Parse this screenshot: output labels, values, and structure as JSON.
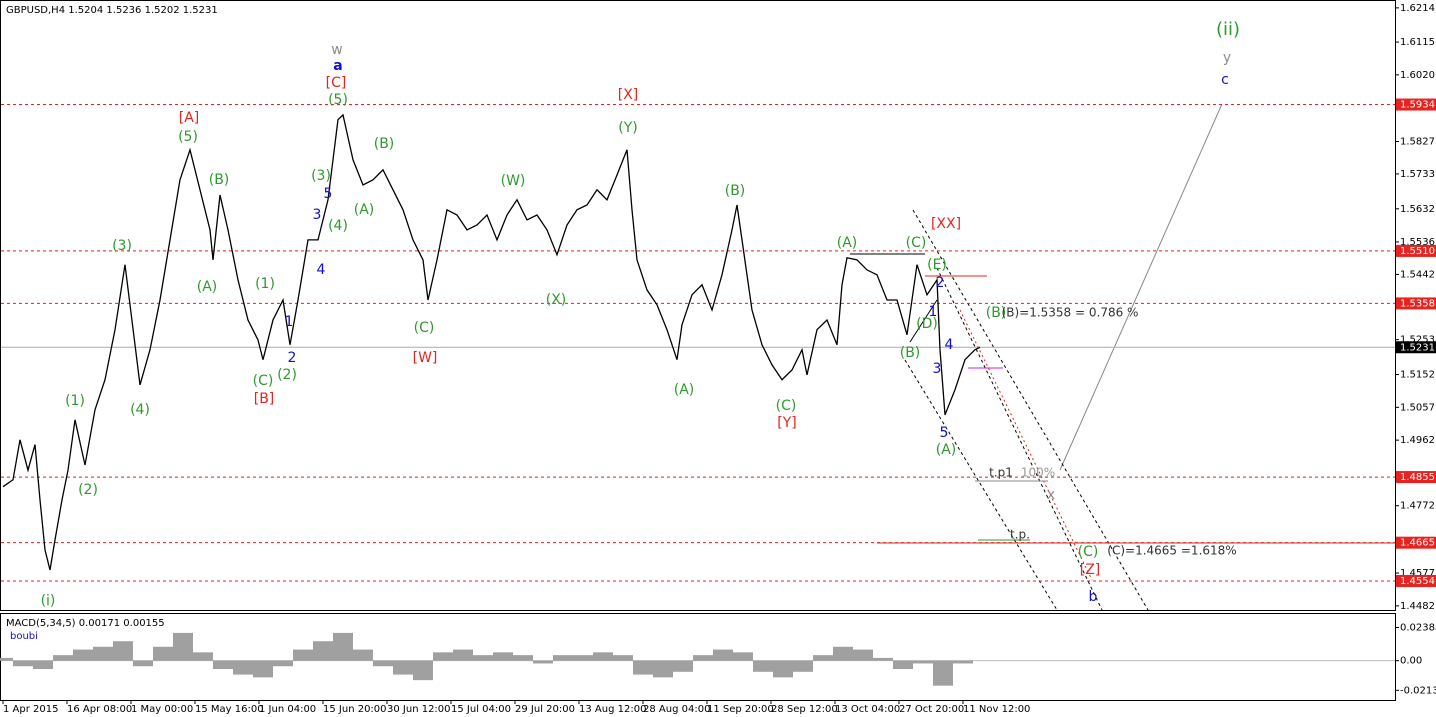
{
  "chart_data": [
    {
      "type": "line",
      "title": "GBPUSD,H4 1.5204 1.5236 1.5202 1.5231",
      "color": "#000000",
      "x": [
        0,
        10,
        17,
        25,
        32,
        37,
        42,
        47,
        52,
        59,
        65,
        72,
        82,
        92,
        102,
        112,
        122,
        132,
        137,
        147,
        157,
        167,
        177,
        187,
        197,
        207,
        210,
        217,
        225,
        235,
        245,
        255,
        260,
        270,
        280,
        287,
        295,
        305,
        315,
        325,
        335,
        340,
        350,
        360,
        370,
        380,
        390,
        400,
        410,
        420,
        425,
        434,
        444,
        454,
        464,
        474,
        484,
        494,
        504,
        514,
        524,
        534,
        544,
        554,
        564,
        574,
        584,
        594,
        604,
        614,
        624,
        629,
        634,
        644,
        654,
        664,
        674,
        679,
        689,
        699,
        709,
        719,
        729,
        734,
        739,
        749,
        759,
        769,
        779,
        789,
        799,
        804,
        814,
        824,
        834,
        839,
        844,
        854,
        864,
        874,
        884,
        894,
        904,
        914,
        924,
        934,
        937,
        942,
        952,
        962,
        972,
        977
      ],
      "values": [
        1.4827,
        1.4847,
        1.4963,
        1.4875,
        1.4949,
        1.4789,
        1.4644,
        1.4586,
        1.4673,
        1.4789,
        1.4875,
        1.5021,
        1.489,
        1.505,
        1.5137,
        1.5282,
        1.547,
        1.5238,
        1.5122,
        1.5224,
        1.5368,
        1.5542,
        1.5716,
        1.5803,
        1.5687,
        1.5571,
        1.5484,
        1.5672,
        1.5571,
        1.5426,
        1.531,
        1.5252,
        1.5195,
        1.531,
        1.5368,
        1.5238,
        1.5368,
        1.5542,
        1.5542,
        1.5658,
        1.589,
        1.5904,
        1.5774,
        1.5701,
        1.5716,
        1.5745,
        1.5687,
        1.5629,
        1.5542,
        1.5484,
        1.5368,
        1.5484,
        1.5629,
        1.5614,
        1.5571,
        1.5585,
        1.5614,
        1.5542,
        1.5614,
        1.5658,
        1.56,
        1.5614,
        1.5571,
        1.5499,
        1.5585,
        1.5629,
        1.5643,
        1.5687,
        1.5658,
        1.573,
        1.5803,
        1.5629,
        1.5484,
        1.5397,
        1.5354,
        1.5282,
        1.5195,
        1.5296,
        1.5383,
        1.5412,
        1.5339,
        1.5441,
        1.5571,
        1.5643,
        1.5542,
        1.5339,
        1.5238,
        1.518,
        1.5137,
        1.5165,
        1.5224,
        1.5151,
        1.5282,
        1.531,
        1.5238,
        1.5412,
        1.549,
        1.5484,
        1.5455,
        1.5441,
        1.5368,
        1.5368,
        1.5267,
        1.547,
        1.5383,
        1.5426,
        1.5224,
        1.5035,
        1.5108,
        1.5195,
        1.5224,
        1.5231
      ],
      "xlim": [
        0,
        1392
      ],
      "xticks": [
        {
          "value": 0,
          "label": "1 Apr 2015"
        },
        {
          "value": 64,
          "label": "16 Apr 08:00"
        },
        {
          "value": 128,
          "label": "1 May 00:00"
        },
        {
          "value": 192,
          "label": "15 May 16:00"
        },
        {
          "value": 256,
          "label": "1 Jun 04:00"
        },
        {
          "value": 320,
          "label": "15 Jun 20:00"
        },
        {
          "value": 384,
          "label": "30 Jun 12:00"
        },
        {
          "value": 448,
          "label": "15 Jul 04:00"
        },
        {
          "value": 512,
          "label": "29 Jul 20:00"
        },
        {
          "value": 576,
          "label": "13 Aug 12:00"
        },
        {
          "value": 640,
          "label": "28 Aug 04:00"
        },
        {
          "value": 704,
          "label": "11 Sep 20:00"
        },
        {
          "value": 768,
          "label": "28 Sep 12:00"
        },
        {
          "value": 832,
          "label": "13 Oct 04:00"
        },
        {
          "value": 896,
          "label": "27 Oct 20:00"
        },
        {
          "value": 960,
          "label": "11 Nov 12:00"
        }
      ],
      "ylim": [
        1.447,
        1.6231
      ],
      "yticks": [
        1.6214,
        1.6115,
        {
          "value": 1.602,
          "label": "1.6020"
        },
        1.5827,
        1.5733,
        1.5632,
        1.5536,
        1.5442,
        1.5253,
        1.5152,
        1.5057,
        1.4962,
        1.4772,
        1.4577,
        1.4482
      ],
      "levels": [
        1.5934,
        {
          "value": 1.551,
          "label": "1.5510"
        },
        1.5358,
        1.4855,
        1.4665,
        1.4554
      ],
      "level_color": "#e8231f",
      "annotations": [
        {
          "text": "(ii)",
          "color": "#2f9a2f"
        },
        {
          "text": "y",
          "color": "#8c8c8c"
        },
        {
          "text": "c",
          "color": "#1010d0"
        },
        {
          "text": "w",
          "color": "#8c8c8c"
        },
        {
          "text": "a",
          "color": "#1010d0"
        },
        {
          "text": "[C]",
          "color": "#e8231f"
        },
        {
          "text": "(5)",
          "color": "#2f9a2f"
        },
        {
          "text": "[X]",
          "color": "#e8231f"
        },
        {
          "text": "[A]",
          "color": "#e8231f"
        },
        {
          "text": "(5)",
          "color": "#2f9a2f"
        },
        {
          "text": "(Y)",
          "color": "#2f9a2f"
        },
        {
          "text": "(B)",
          "color": "#2f9a2f"
        },
        {
          "text": "(B)",
          "color": "#2f9a2f"
        },
        {
          "text": "(3)",
          "color": "#2f9a2f"
        },
        {
          "text": "5",
          "color": "#1010d0"
        },
        {
          "text": "(W)",
          "color": "#2f9a2f"
        },
        {
          "text": "(B)",
          "color": "#2f9a2f"
        },
        {
          "text": "(A)",
          "color": "#2f9a2f"
        },
        {
          "text": "3",
          "color": "#1010d0"
        },
        {
          "text": "(4)",
          "color": "#2f9a2f"
        },
        {
          "text": "[XX]",
          "color": "#e8231f"
        },
        {
          "text": "(3)",
          "color": "#2f9a2f"
        },
        {
          "text": "(A)",
          "color": "#2f9a2f"
        },
        {
          "text": "(C)",
          "color": "#2f9a2f"
        },
        {
          "text": "(E)",
          "color": "#2f9a2f"
        },
        {
          "text": "4",
          "color": "#1010d0"
        },
        {
          "text": "(A)",
          "color": "#2f9a2f"
        },
        {
          "text": "(1)",
          "color": "#2f9a2f"
        },
        {
          "text": "2",
          "color": "#1010d0"
        },
        {
          "text": "(X)",
          "color": "#2f9a2f"
        },
        {
          "text": "1",
          "color": "#1010d0"
        },
        {
          "text": "1",
          "color": "#1010d0"
        },
        {
          "text": "(B)",
          "color": "#2f9a2f"
        },
        {
          "text": "(B)=1.5358 = 0.786 %",
          "color": "#333333"
        },
        {
          "text": "(D)",
          "color": "#2f9a2f"
        },
        {
          "text": "(C)",
          "color": "#2f9a2f"
        },
        {
          "text": "(B)",
          "color": "#2f9a2f"
        },
        {
          "text": "4",
          "color": "#1010d0"
        },
        {
          "text": "[W]",
          "color": "#e8231f"
        },
        {
          "text": "2",
          "color": "#1010d0"
        },
        {
          "text": "3",
          "color": "#1010d0"
        },
        {
          "text": "(C)",
          "color": "#2f9a2f"
        },
        {
          "text": "(2)",
          "color": "#2f9a2f"
        },
        {
          "text": "(A)",
          "color": "#2f9a2f"
        },
        {
          "text": "[B]",
          "color": "#e8231f"
        },
        {
          "text": "(1)",
          "color": "#2f9a2f"
        },
        {
          "text": "(4)",
          "color": "#2f9a2f"
        },
        {
          "text": "(C)",
          "color": "#2f9a2f"
        },
        {
          "text": "[Y]",
          "color": "#e8231f"
        },
        {
          "text": "5",
          "color": "#1010d0"
        },
        {
          "text": "(A)",
          "color": "#2f9a2f"
        },
        {
          "text": "t.p1",
          "color": "#333333"
        },
        {
          "text": "100%",
          "color": "#9a9a9a"
        },
        {
          "text": "x",
          "color": "#8c8c8c"
        },
        {
          "text": "(2)",
          "color": "#2f9a2f"
        },
        {
          "text": "t.p.",
          "color": "#333333"
        },
        {
          "text": "(C)",
          "color": "#2f9a2f"
        },
        {
          "text": "(C)=1.4665 =1.618%",
          "color": "#333333"
        },
        {
          "text": "[Z]",
          "color": "#e8231f"
        },
        {
          "text": "b",
          "color": "#1010d0"
        },
        {
          "text": "(i)",
          "color": "#2f9a2f"
        }
      ]
    },
    {
      "type": "bar",
      "title": "MACD(5,34,5) 0.00171 0.00155",
      "subtitle": "boubi",
      "color": "#a0a0a0",
      "x": [
        0,
        20,
        40,
        60,
        80,
        100,
        120,
        140,
        160,
        180,
        200,
        220,
        240,
        260,
        280,
        300,
        320,
        340,
        360,
        380,
        400,
        420,
        440,
        460,
        480,
        500,
        520,
        540,
        560,
        580,
        600,
        620,
        640,
        660,
        680,
        700,
        720,
        740,
        760,
        780,
        800,
        820,
        840,
        860,
        880,
        900,
        920,
        940,
        960
      ],
      "values": [
        0.002,
        -0.004,
        -0.006,
        0.004,
        0.008,
        0.01,
        0.014,
        -0.004,
        0.01,
        0.02,
        0.006,
        -0.006,
        -0.01,
        -0.012,
        -0.004,
        0.008,
        0.014,
        0.02,
        0.008,
        -0.004,
        -0.01,
        -0.014,
        0.006,
        0.008,
        0.004,
        0.006,
        0.004,
        -0.002,
        0.004,
        0.004,
        0.006,
        0.004,
        -0.01,
        -0.012,
        -0.008,
        0.004,
        0.008,
        0.006,
        -0.008,
        -0.012,
        -0.008,
        0.004,
        0.01,
        0.008,
        0.002,
        -0.006,
        -0.002,
        -0.018,
        -0.002
      ],
      "ylim": [
        -0.0283,
        0.0336
      ],
      "yticks": [
        0.02388,
        {
          "value": 0,
          "label": "0.00"
        },
        -0.02132
      ]
    }
  ]
}
